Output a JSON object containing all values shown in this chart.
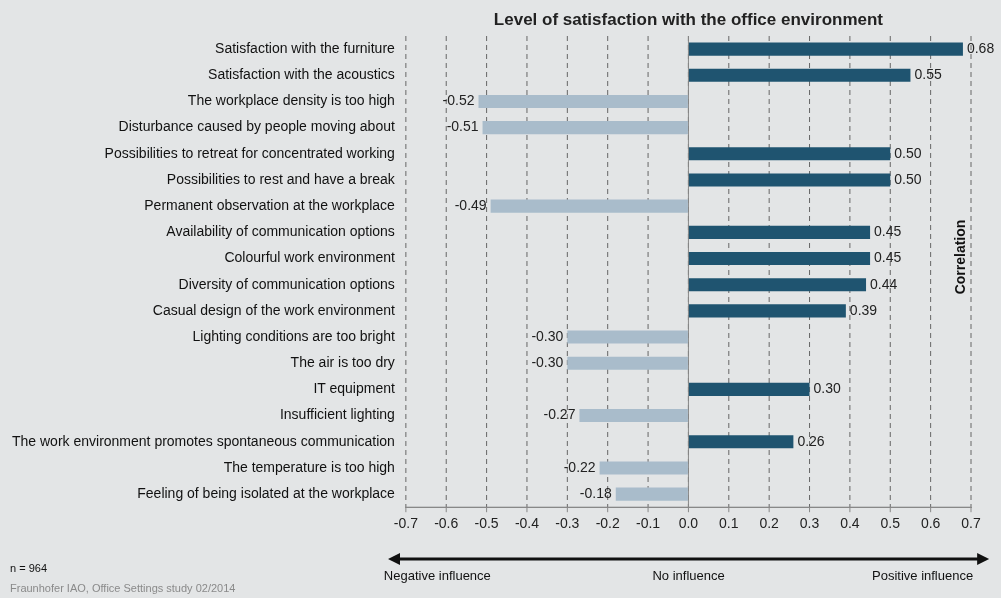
{
  "chart_data": {
    "type": "bar",
    "orientation": "horizontal",
    "title": "Level of satisfaction with the office environment",
    "categories": [
      "Satisfaction with the furniture",
      "Satisfaction with the acoustics",
      "The workplace density is too high",
      "Disturbance caused by people moving about",
      "Possibilities to retreat for concentrated working",
      "Possibilities to rest and have a break",
      "Permanent observation at the workplace",
      "Availability of communication options",
      "Colourful work environment",
      "Diversity of communication options",
      "Casual design of the work environment",
      "Lighting conditions are too bright",
      "The air is too dry",
      "IT equipment",
      "Insufficient lighting",
      "The work environment promotes spontaneous communication",
      "The temperature is too high",
      "Feeling of being isolated at the workplace"
    ],
    "values": [
      0.68,
      0.55,
      -0.52,
      -0.51,
      0.5,
      0.5,
      -0.49,
      0.45,
      0.45,
      0.44,
      0.39,
      -0.3,
      -0.3,
      0.3,
      -0.27,
      0.26,
      -0.22,
      -0.18
    ],
    "value_labels": [
      "0.68",
      "0.55",
      "-0.52",
      "-0.51",
      "0.50",
      "0.50",
      "-0.49",
      "0.45",
      "0.45",
      "0.44",
      "0.39",
      "-0.30",
      "-0.30",
      "0.30",
      "-0.27",
      "0.26",
      "-0.22",
      "-0.18"
    ],
    "colors": [
      "#1f5470",
      "#1f5470",
      "#a9bccb",
      "#a9bccb",
      "#1f5470",
      "#1f5470",
      "#a9bccb",
      "#1f5470",
      "#1f5470",
      "#1f5470",
      "#1f5470",
      "#a9bccb",
      "#a9bccb",
      "#1f5470",
      "#a9bccb",
      "#1f5470",
      "#a9bccb",
      "#a9bccb"
    ],
    "xlim": [
      -0.7,
      0.7
    ],
    "xticks": [
      -0.7,
      -0.6,
      -0.5,
      -0.4,
      -0.3,
      -0.2,
      -0.1,
      {
        "value": 0,
        "label": "0.0"
      },
      0.1,
      0.2,
      0.3,
      0.4,
      0.5,
      0.6,
      0.7
    ],
    "grid": "x",
    "legend": false,
    "annotations": [
      "Correlation",
      "Negative influence",
      "No influence",
      "Positive influence",
      "n = 964",
      "Fraunhofer IAO, Office Settings study 02/2014"
    ]
  }
}
